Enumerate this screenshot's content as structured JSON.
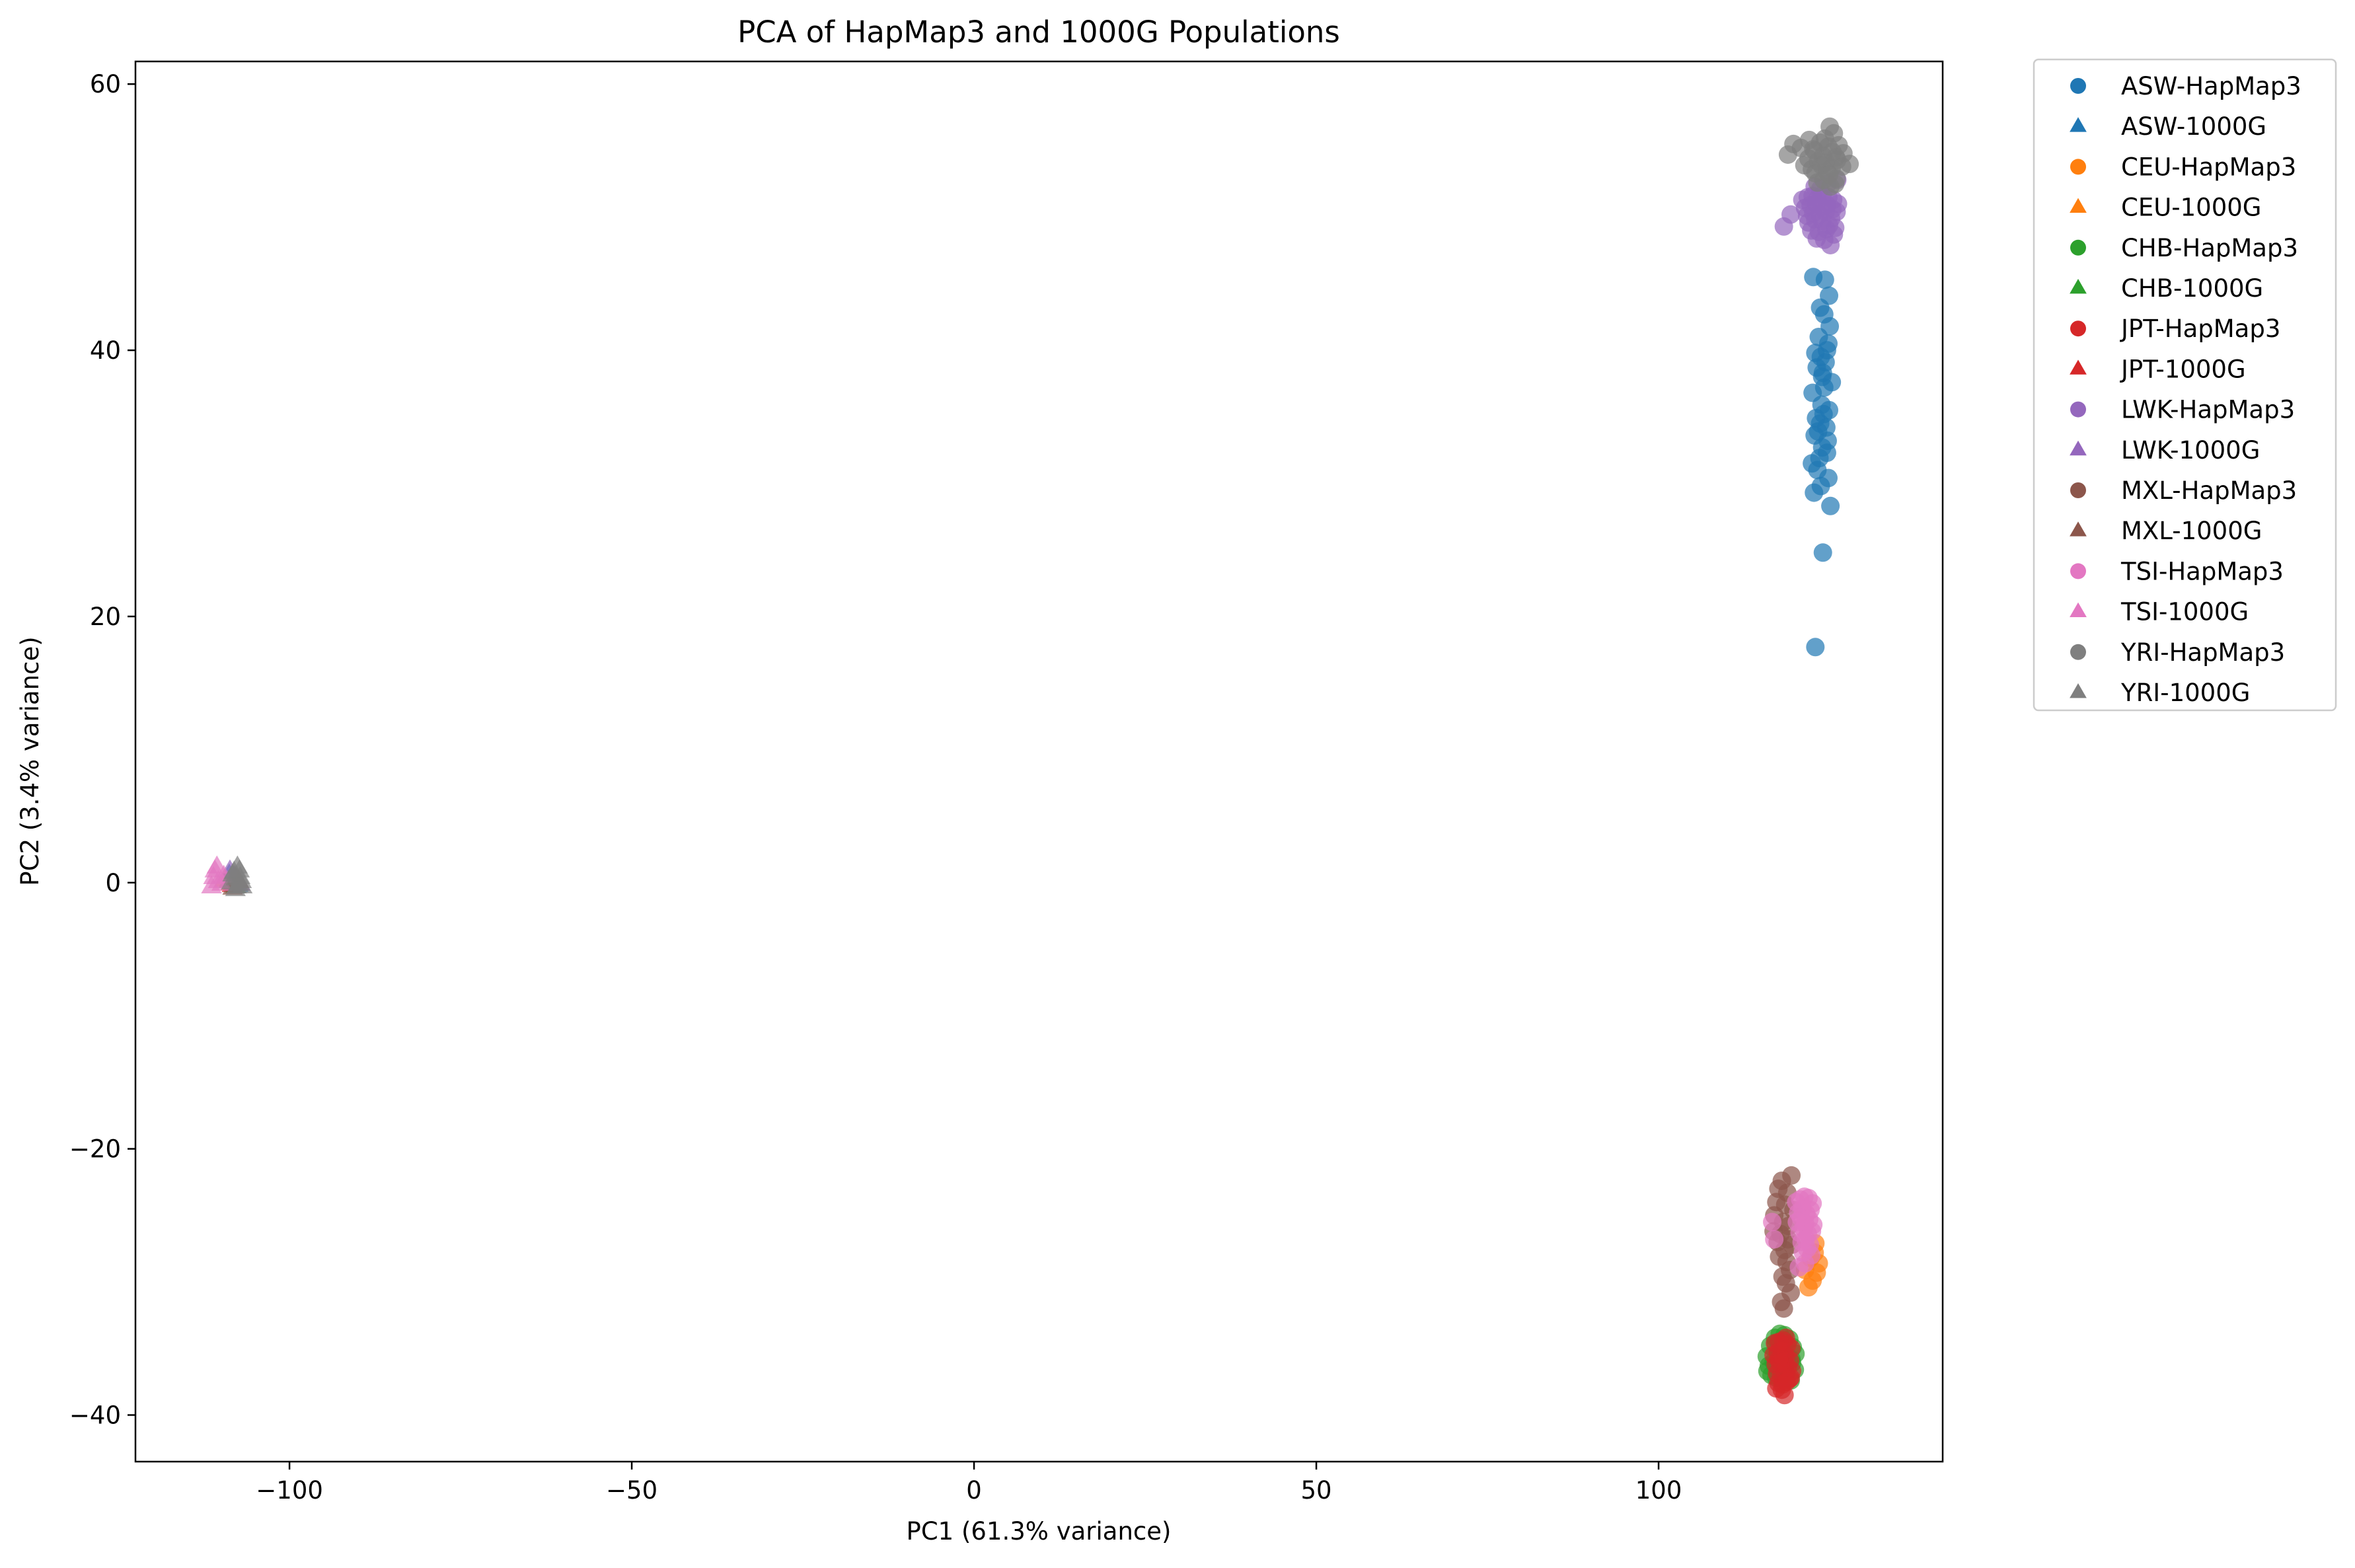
{
  "chart_data": {
    "type": "scatter",
    "title": "PCA of HapMap3 and 1000G Populations",
    "xlabel": "PC1 (61.3% variance)",
    "ylabel": "PC2 (3.4% variance)",
    "xlim": [
      -122.5,
      141.5
    ],
    "ylim": [
      -43.5,
      61.7
    ],
    "xticks": [
      -100,
      -50,
      0,
      50,
      100
    ],
    "xtick_labels": [
      "−100",
      "−50",
      "0",
      "50",
      "100"
    ],
    "yticks": [
      -40,
      -20,
      0,
      20,
      40,
      60
    ],
    "ytick_labels": [
      "−40",
      "−20",
      "0",
      "20",
      "40",
      "60"
    ],
    "grid": false,
    "legend_position": "outside-right",
    "series": [
      {
        "name": "ASW-HapMap3",
        "marker": "circle",
        "color": "#1f77b4",
        "x": [
          122.6,
          124.3,
          124.9,
          123.6,
          124.2,
          125.0,
          123.4,
          124.8,
          124.6,
          122.9,
          123.7,
          124.4,
          123.1,
          124.0,
          123.9,
          125.3,
          124.2,
          122.5,
          123.8,
          124.9,
          124.1,
          123.0,
          123.6,
          124.5,
          123.3,
          122.8,
          124.7,
          123.9,
          124.6,
          123.5,
          122.4,
          123.2,
          124.8,
          123.7,
          122.7,
          125.1,
          124.0,
          122.9
        ],
        "y": [
          45.5,
          45.3,
          44.1,
          43.2,
          42.7,
          41.8,
          41.0,
          40.5,
          40.0,
          39.8,
          39.5,
          39.1,
          38.7,
          38.3,
          38.0,
          37.6,
          37.2,
          36.8,
          35.9,
          35.5,
          35.2,
          34.9,
          34.5,
          34.2,
          33.9,
          33.6,
          33.2,
          32.7,
          32.3,
          31.9,
          31.5,
          31.0,
          30.4,
          29.8,
          29.3,
          28.3,
          24.8,
          17.7
        ]
      },
      {
        "name": "ASW-1000G",
        "marker": "triangle",
        "color": "#1f77b4",
        "x": [
          -108.2,
          -107.5,
          -108.8
        ],
        "y": [
          0.3,
          -0.2,
          0.6
        ]
      },
      {
        "name": "CEU-HapMap3",
        "marker": "circle",
        "color": "#ff7f0e",
        "x": [
          122.8,
          123.4,
          123.1,
          122.5,
          121.9,
          122.2,
          121.4,
          122.9
        ],
        "y": [
          -27.8,
          -28.6,
          -29.3,
          -29.9,
          -30.4,
          -28.2,
          -29.1,
          -27.1
        ]
      },
      {
        "name": "CEU-1000G",
        "marker": "triangle",
        "color": "#ff7f0e",
        "x": [
          -109.5,
          -108.6
        ],
        "y": [
          0.2,
          -0.1
        ]
      },
      {
        "name": "CHB-HapMap3",
        "marker": "circle",
        "color": "#2ca02c",
        "x": [
          115.8,
          116.3,
          117.0,
          117.7,
          118.4,
          119.1,
          119.6,
          120.0,
          116.1,
          116.8,
          117.5,
          118.2,
          118.9,
          119.5,
          119.9,
          116.5,
          117.2,
          117.9,
          118.6,
          119.3,
          115.9,
          117.1,
          118.3,
          119.4
        ],
        "y": [
          -35.6,
          -34.8,
          -34.2,
          -33.9,
          -34.0,
          -34.3,
          -34.9,
          -35.4,
          -36.3,
          -36.0,
          -35.5,
          -35.3,
          -35.6,
          -36.1,
          -36.6,
          -37.0,
          -37.2,
          -36.8,
          -36.9,
          -37.4,
          -36.7,
          -34.6,
          -34.4,
          -35.8
        ]
      },
      {
        "name": "CHB-1000G",
        "marker": "triangle",
        "color": "#2ca02c",
        "x": [
          -108.9,
          -107.9
        ],
        "y": [
          0.1,
          -0.3
        ]
      },
      {
        "name": "JPT-HapMap3",
        "marker": "circle",
        "color": "#d62728",
        "x": [
          117.0,
          117.6,
          118.2,
          118.8,
          119.4,
          116.8,
          117.4,
          118.0,
          118.6,
          119.2,
          117.1,
          117.7,
          118.3,
          118.9,
          119.5,
          117.3,
          117.9,
          118.5,
          119.1,
          117.5,
          118.1,
          118.7,
          119.3,
          118.4,
          117.2,
          118.0,
          118.6,
          117.6
        ],
        "y": [
          -34.6,
          -34.5,
          -34.4,
          -34.7,
          -35.0,
          -35.5,
          -35.3,
          -35.2,
          -35.6,
          -35.9,
          -36.2,
          -36.1,
          -36.0,
          -36.4,
          -36.7,
          -36.9,
          -37.0,
          -36.8,
          -37.3,
          -37.6,
          -37.7,
          -37.5,
          -37.2,
          -38.5,
          -38.0,
          -38.1,
          -34.2,
          -35.8
        ]
      },
      {
        "name": "JPT-1000G",
        "marker": "triangle",
        "color": "#d62728",
        "x": [
          -108.4,
          -107.6
        ],
        "y": [
          -0.2,
          0.2
        ]
      },
      {
        "name": "LWK-HapMap3",
        "marker": "circle",
        "color": "#9467bd",
        "x": [
          118.3,
          119.3,
          121.0,
          121.8,
          122.5,
          123.2,
          124.0,
          124.8,
          125.5,
          126.2,
          121.4,
          122.2,
          123.0,
          123.8,
          124.6,
          125.4,
          126.0,
          121.7,
          122.6,
          123.5,
          124.4,
          125.2,
          121.9,
          122.9,
          123.9,
          124.9,
          125.8,
          122.3,
          123.4,
          124.5,
          125.6,
          123.1,
          124.2,
          125.1,
          122.8,
          124.7,
          126.1,
          123.6
        ],
        "y": [
          49.3,
          50.2,
          51.3,
          51.5,
          51.6,
          51.4,
          51.7,
          51.5,
          51.3,
          51.0,
          50.7,
          50.9,
          51.0,
          50.8,
          50.9,
          50.6,
          50.4,
          50.1,
          50.3,
          50.2,
          50.4,
          49.9,
          49.6,
          49.8,
          49.7,
          49.4,
          49.2,
          49.0,
          48.9,
          49.1,
          48.7,
          48.4,
          48.3,
          47.9,
          52.3,
          52.5,
          52.8,
          52.1
        ]
      },
      {
        "name": "LWK-1000G",
        "marker": "triangle",
        "color": "#9467bd",
        "x": [
          -108.0,
          -107.2,
          -108.7
        ],
        "y": [
          0.5,
          -0.1,
          0.9
        ]
      },
      {
        "name": "MXL-HapMap3",
        "marker": "circle",
        "color": "#8c564b",
        "x": [
          118.0,
          119.4,
          117.5,
          118.8,
          117.2,
          118.5,
          119.7,
          116.9,
          118.2,
          119.0,
          117.8,
          118.9,
          119.5,
          118.4,
          117.6,
          118.7,
          119.2,
          118.1,
          116.8,
          117.4,
          118.6,
          119.3,
          117.9,
          118.3
        ],
        "y": [
          -22.4,
          -22.0,
          -23.0,
          -23.3,
          -24.0,
          -24.2,
          -24.6,
          -25.0,
          -25.5,
          -25.8,
          -26.4,
          -26.8,
          -27.2,
          -27.6,
          -28.1,
          -28.5,
          -29.1,
          -29.6,
          -26.2,
          -27.0,
          -30.1,
          -30.8,
          -31.5,
          -32.0
        ]
      },
      {
        "name": "MXL-1000G",
        "marker": "triangle",
        "color": "#8c564b",
        "x": [
          -108.3,
          -107.4
        ],
        "y": [
          -0.4,
          0.1
        ]
      },
      {
        "name": "TSI-HapMap3",
        "marker": "circle",
        "color": "#e377c2",
        "x": [
          116.6,
          120.1,
          120.7,
          121.3,
          121.9,
          122.5,
          120.4,
          121.0,
          121.6,
          122.2,
          120.2,
          120.8,
          121.4,
          122.0,
          122.6,
          120.6,
          121.2,
          121.8,
          122.4,
          120.9,
          121.5,
          122.1,
          121.1,
          121.7,
          122.3,
          121.4,
          120.5,
          116.9
        ],
        "y": [
          -25.5,
          -24.0,
          -23.8,
          -23.6,
          -23.7,
          -24.1,
          -24.8,
          -24.5,
          -24.9,
          -24.6,
          -25.5,
          -25.2,
          -25.6,
          -25.3,
          -25.7,
          -26.3,
          -26.0,
          -26.4,
          -26.2,
          -27.0,
          -26.8,
          -27.2,
          -27.8,
          -27.5,
          -28.0,
          -28.6,
          -28.9,
          -26.8
        ]
      },
      {
        "name": "TSI-1000G",
        "marker": "triangle",
        "color": "#e377c2",
        "x": [
          -111.4,
          -110.4,
          -109.6,
          -110.9,
          -109.9,
          -111.1,
          -110.6
        ],
        "y": [
          -0.3,
          0.1,
          0.5,
          0.9,
          -0.1,
          0.4,
          1.2
        ]
      },
      {
        "name": "YRI-HapMap3",
        "marker": "circle",
        "color": "#7f7f7f",
        "x": [
          118.9,
          119.7,
          120.8,
          121.9,
          122.8,
          123.6,
          124.3,
          125.0,
          125.6,
          126.3,
          127.0,
          127.9,
          121.3,
          122.4,
          123.3,
          124.0,
          124.8,
          125.4,
          126.1,
          126.8,
          122.0,
          122.9,
          123.8,
          124.6,
          125.3,
          126.0,
          123.2,
          124.1,
          125.1,
          125.8,
          124.4,
          125.9,
          124.9,
          122.6
        ],
        "y": [
          54.7,
          55.5,
          55.2,
          54.4,
          55.0,
          55.6,
          55.9,
          56.8,
          56.3,
          55.4,
          54.8,
          54.0,
          53.9,
          53.6,
          54.2,
          54.6,
          55.3,
          54.9,
          54.3,
          53.8,
          55.8,
          53.3,
          53.9,
          53.4,
          53.7,
          52.9,
          52.6,
          52.8,
          52.3,
          52.5,
          54.1,
          54.5,
          53.2,
          55.1
        ]
      },
      {
        "name": "YRI-1000G",
        "marker": "triangle",
        "color": "#7f7f7f",
        "x": [
          -108.5,
          -107.7,
          -107.2,
          -108.1,
          -107.6,
          -107.0,
          -107.9,
          -108.3,
          -107.4,
          -106.9,
          -107.8,
          -107.3
        ],
        "y": [
          0.0,
          -0.3,
          0.4,
          0.8,
          1.2,
          0.1,
          -0.5,
          0.6,
          -0.1,
          -0.3,
          0.3,
          0.9
        ]
      }
    ]
  }
}
